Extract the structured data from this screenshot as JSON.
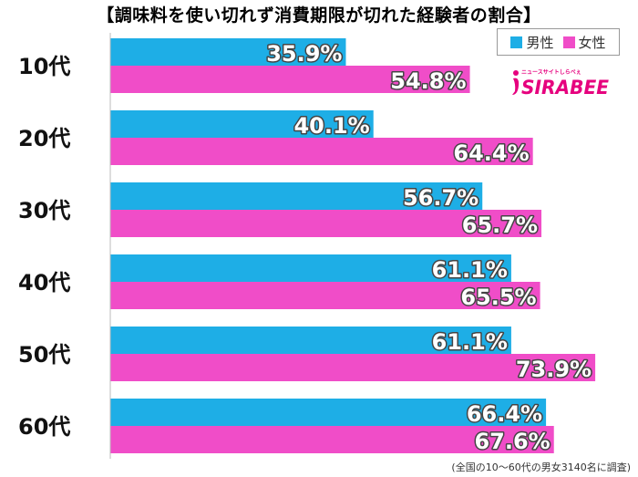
{
  "chart_data": {
    "type": "bar",
    "orientation": "horizontal",
    "title": "【調味料を使い切れず消費期限が切れた経験者の割合】",
    "categories": [
      "10代",
      "20代",
      "30代",
      "40代",
      "50代",
      "60代"
    ],
    "series": [
      {
        "name": "男性",
        "values": [
          35.9,
          40.1,
          56.7,
          61.1,
          61.1,
          66.4
        ],
        "color": "#1EAEE6"
      },
      {
        "name": "女性",
        "values": [
          54.8,
          64.4,
          65.7,
          65.5,
          73.9,
          67.6
        ],
        "color": "#F04DC8"
      }
    ],
    "xlim": [
      0,
      100
    ],
    "value_suffix": "%",
    "grid": false,
    "legend": "top-right",
    "note": "(全国の10～60代の男女3140名に調査)"
  },
  "logo": {
    "main": "SIRABEE",
    "sub": "ニュースサイトしらべぇ",
    "color": "#E6007E"
  }
}
